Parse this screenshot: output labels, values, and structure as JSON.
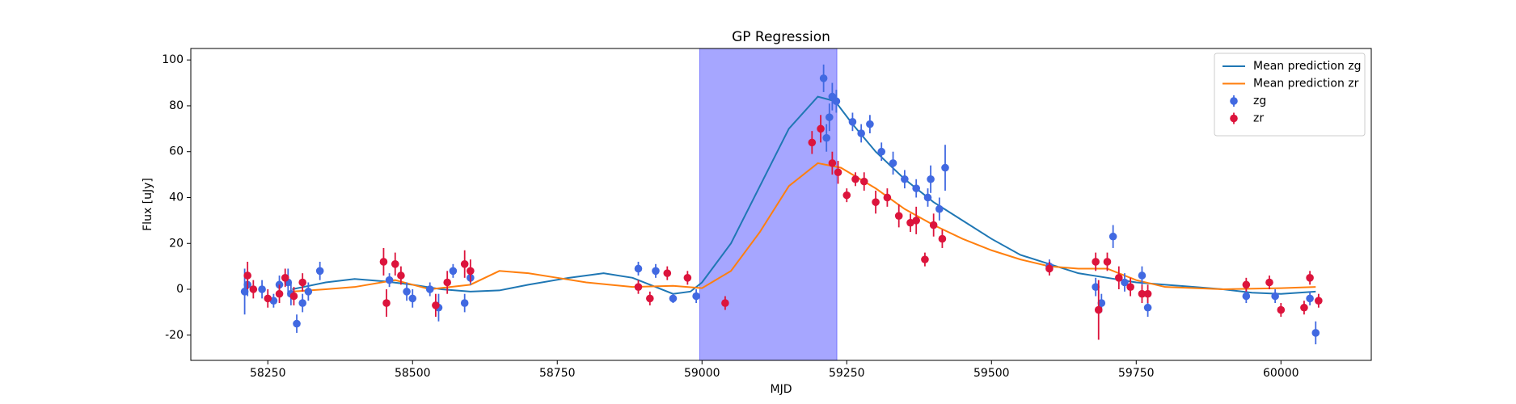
{
  "chart_data": {
    "type": "errorbar",
    "title": "GP Regression",
    "xlabel": "MJD",
    "ylabel": "Flux [uJy]",
    "xlim": [
      58117,
      60156
    ],
    "ylim": [
      -31,
      105
    ],
    "xticks": [
      58250,
      58500,
      58750,
      59000,
      59250,
      59500,
      59750,
      60000
    ],
    "yticks": [
      -20,
      0,
      20,
      40,
      60,
      80,
      100
    ],
    "legend": "upper right",
    "span": {
      "x": [
        58996,
        59233
      ],
      "color": "#0000ff"
    },
    "series": [
      {
        "name": "Mean prediction zg",
        "type": "line",
        "color": "#1f77b4",
        "x": [
          58292,
          58350,
          58400,
          58450,
          58500,
          58550,
          58600,
          58650,
          58700,
          58770,
          58830,
          58880,
          58920,
          58950,
          58980,
          59000,
          59050,
          59100,
          59150,
          59200,
          59230,
          59260,
          59300,
          59350,
          59400,
          59450,
          59500,
          59550,
          59600,
          59650,
          59700,
          59750,
          59800,
          59850,
          59900,
          59950,
          60000,
          60060
        ],
        "values": [
          0,
          3,
          4.5,
          3.5,
          2,
          0,
          -1,
          -0.5,
          2,
          5,
          7,
          5,
          1,
          -2,
          -1,
          3,
          20,
          45,
          70,
          84,
          82,
          72,
          60,
          48,
          38,
          30,
          22,
          15,
          11,
          7,
          5,
          3,
          2,
          1,
          0,
          -1.5,
          -2,
          -1
        ]
      },
      {
        "name": "Mean prediction zr",
        "type": "line",
        "color": "#ff7f0e",
        "x": [
          58292,
          58350,
          58400,
          58470,
          58530,
          58600,
          58650,
          58700,
          58750,
          58800,
          58880,
          58950,
          59000,
          59050,
          59100,
          59150,
          59200,
          59240,
          59300,
          59350,
          59400,
          59450,
          59500,
          59550,
          59600,
          59650,
          59700,
          59750,
          59800,
          59900,
          60000,
          60060
        ],
        "values": [
          -1,
          0,
          1,
          4,
          0,
          2,
          8,
          7,
          5,
          3,
          1,
          1.5,
          0.5,
          8,
          25,
          45,
          55,
          53,
          44,
          35,
          28,
          22,
          17,
          13,
          10,
          9,
          9,
          4,
          1,
          0,
          0.5,
          1
        ]
      },
      {
        "name": "zg",
        "type": "errorbar",
        "color": "#4169e1",
        "x": [
          58210,
          58215,
          58240,
          58260,
          58270,
          58285,
          58290,
          58300,
          58310,
          58320,
          58340,
          58460,
          58490,
          58500,
          58530,
          58545,
          58570,
          58590,
          58600,
          58890,
          58920,
          58950,
          58990,
          59210,
          59215,
          59220,
          59225,
          59232,
          59260,
          59275,
          59290,
          59310,
          59330,
          59350,
          59370,
          59390,
          59395,
          59410,
          59420,
          59600,
          59680,
          59690,
          59710,
          59730,
          59760,
          59770,
          59940,
          59990,
          60050,
          60060
        ],
        "values": [
          -1,
          2,
          0,
          -5,
          2,
          3,
          -2,
          -15,
          -6,
          -1,
          8,
          4,
          -1,
          -4,
          0,
          -8,
          8,
          -6,
          5,
          9,
          8,
          -4,
          -3,
          92,
          66,
          75,
          84,
          82,
          73,
          68,
          72,
          60,
          55,
          48,
          44,
          40,
          48,
          35,
          53,
          10,
          1,
          -6,
          23,
          3,
          6,
          -8,
          -3,
          -3,
          -4,
          -19
        ],
        "errors": [
          10,
          5,
          4,
          3,
          4,
          6,
          5,
          4,
          4,
          4,
          4,
          3,
          4,
          4,
          3,
          6,
          3,
          4,
          3,
          3,
          3,
          2,
          3,
          6,
          6,
          6,
          6,
          5,
          4,
          4,
          4,
          4,
          5,
          4,
          4,
          4,
          6,
          5,
          10,
          3,
          4,
          4,
          5,
          4,
          4,
          4,
          3,
          3,
          3,
          5
        ]
      },
      {
        "name": "zr",
        "type": "errorbar",
        "color": "#dc143c",
        "x": [
          58215,
          58225,
          58250,
          58270,
          58280,
          58295,
          58310,
          58450,
          58455,
          58470,
          58480,
          58540,
          58560,
          58590,
          58600,
          58890,
          58910,
          58940,
          58975,
          59040,
          59190,
          59205,
          59225,
          59235,
          59250,
          59265,
          59280,
          59300,
          59320,
          59340,
          59360,
          59370,
          59385,
          59400,
          59415,
          59600,
          59680,
          59685,
          59700,
          59720,
          59740,
          59760,
          59770,
          59940,
          59980,
          60000,
          60040,
          60050,
          60065
        ],
        "values": [
          6,
          0,
          -4,
          -2,
          5,
          -3,
          3,
          12,
          -6,
          11,
          6,
          -7,
          3,
          11,
          8,
          1,
          -4,
          7,
          5,
          -6,
          64,
          70,
          55,
          51,
          41,
          48,
          47,
          38,
          40,
          32,
          29,
          30,
          13,
          28,
          22,
          9,
          12,
          -9,
          12,
          5,
          1,
          -2,
          -2,
          2,
          3,
          -9,
          -8,
          5,
          -5
        ],
        "errors": [
          6,
          4,
          4,
          4,
          4,
          4,
          4,
          6,
          6,
          5,
          4,
          5,
          5,
          6,
          5,
          3,
          3,
          3,
          3,
          3,
          5,
          6,
          5,
          5,
          3,
          3,
          4,
          5,
          4,
          5,
          4,
          6,
          3,
          5,
          4,
          3,
          4,
          13,
          4,
          5,
          4,
          4,
          4,
          3,
          3,
          3,
          3,
          3,
          3
        ]
      }
    ]
  }
}
